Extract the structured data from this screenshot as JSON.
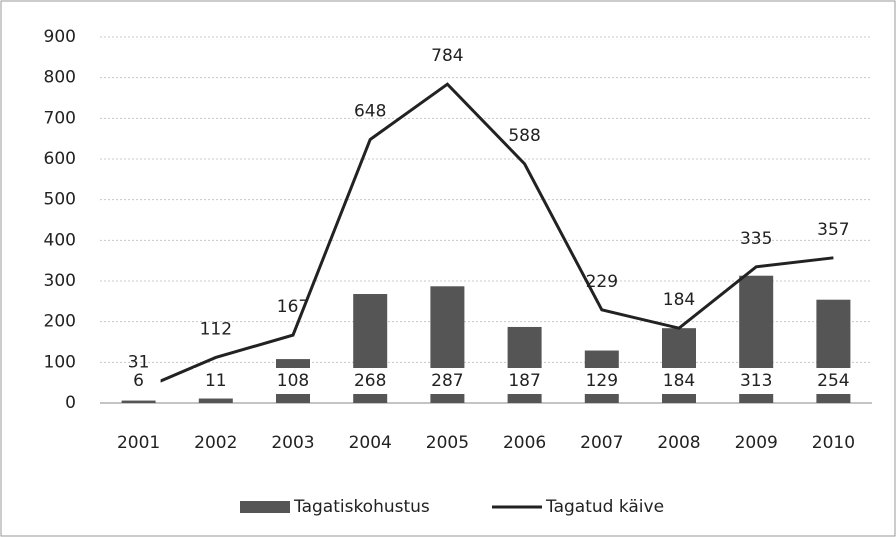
{
  "chart_data": {
    "type": "bar",
    "categories": [
      "2001",
      "2002",
      "2003",
      "2004",
      "2005",
      "2006",
      "2007",
      "2008",
      "2009",
      "2010"
    ],
    "series": [
      {
        "name": "Tagatiskohustus",
        "type": "bar",
        "color": "#555555",
        "values": [
          6,
          11,
          108,
          268,
          287,
          187,
          129,
          184,
          313,
          254
        ]
      },
      {
        "name": "Tagatud käive",
        "type": "line",
        "color": "#222222",
        "values": [
          31,
          112,
          167,
          648,
          784,
          588,
          229,
          184,
          335,
          357
        ]
      }
    ],
    "ylim": [
      0,
      900
    ],
    "yticks": [
      0,
      100,
      200,
      300,
      400,
      500,
      600,
      700,
      800,
      900
    ],
    "grid": true,
    "legend": "bottom"
  }
}
